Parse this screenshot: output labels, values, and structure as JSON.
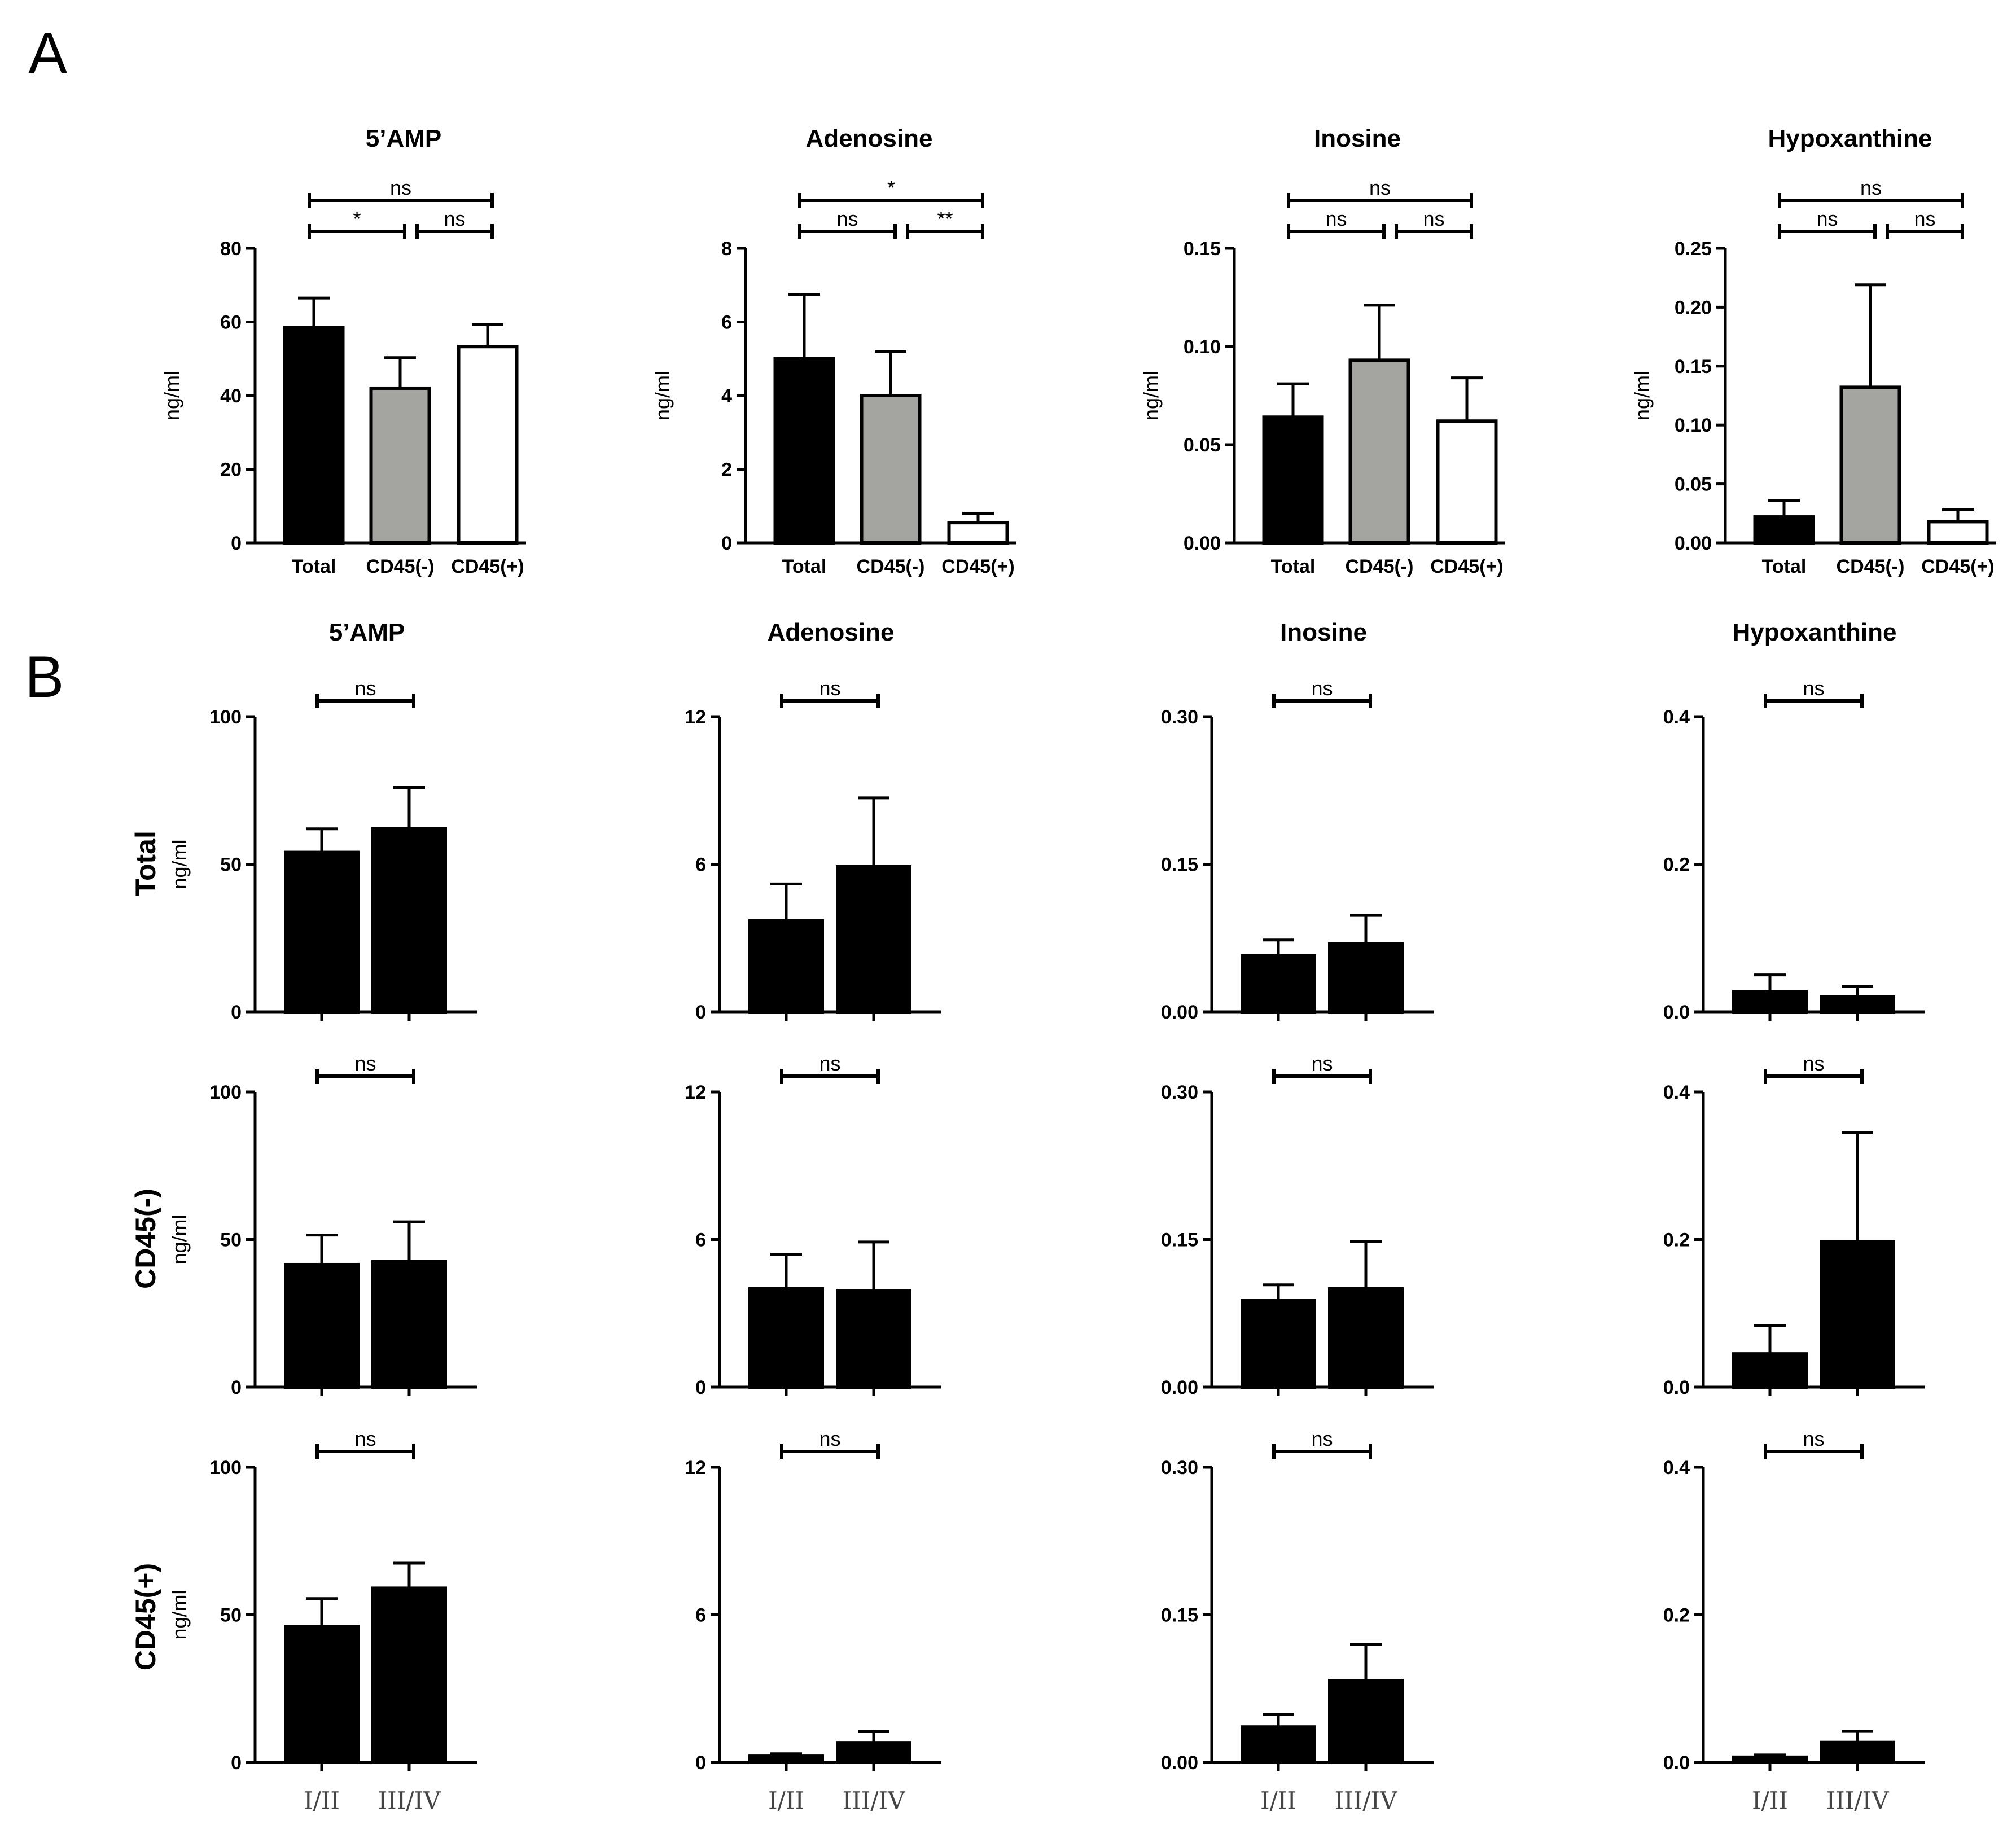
{
  "panel_labels": {
    "A": "A",
    "B": "B"
  },
  "row_labels": [
    "Total",
    "CD45(-)",
    "CD45(+)"
  ],
  "chart_data": {
    "panel_A": [
      {
        "type": "bar",
        "title": "5’AMP",
        "ylabel": "ng/ml",
        "categories": [
          "Total",
          "CD45(-)",
          "CD45(+)"
        ],
        "values": [
          58.5,
          42,
          53.3
        ],
        "errors": [
          8,
          8.3,
          6
        ],
        "colors": [
          "#000000",
          "#a4a4a0",
          "#ffffff"
        ],
        "ylim": [
          0,
          80
        ],
        "yticks": [
          "0",
          "20",
          "40",
          "60",
          "80"
        ],
        "comparisons": [
          {
            "from": 0,
            "to": 2,
            "label": "ns"
          },
          {
            "from": 0,
            "to": 1,
            "label": "*"
          },
          {
            "from": 1,
            "to": 2,
            "label": "ns"
          }
        ]
      },
      {
        "type": "bar",
        "title": "Adenosine",
        "ylabel": "ng/ml",
        "categories": [
          "Total",
          "CD45(-)",
          "CD45(+)"
        ],
        "values": [
          5.0,
          4.0,
          0.55
        ],
        "errors": [
          1.75,
          1.2,
          0.25
        ],
        "colors": [
          "#000000",
          "#a4a4a0",
          "#ffffff"
        ],
        "ylim": [
          0,
          8
        ],
        "yticks": [
          "0",
          "2",
          "4",
          "6",
          "8"
        ],
        "comparisons": [
          {
            "from": 0,
            "to": 2,
            "label": "*"
          },
          {
            "from": 0,
            "to": 1,
            "label": "ns"
          },
          {
            "from": 1,
            "to": 2,
            "label": "**"
          }
        ]
      },
      {
        "type": "bar",
        "title": "Inosine",
        "ylabel": "ng/ml",
        "categories": [
          "Total",
          "CD45(-)",
          "CD45(+)"
        ],
        "values": [
          0.064,
          0.093,
          0.062
        ],
        "errors": [
          0.017,
          0.028,
          0.022
        ],
        "colors": [
          "#000000",
          "#a4a4a0",
          "#ffffff"
        ],
        "ylim": [
          0,
          0.15
        ],
        "yticks": [
          "0.00",
          "0.05",
          "0.10",
          "0.15"
        ],
        "comparisons": [
          {
            "from": 0,
            "to": 2,
            "label": "ns"
          },
          {
            "from": 0,
            "to": 1,
            "label": "ns"
          },
          {
            "from": 1,
            "to": 2,
            "label": "ns"
          }
        ]
      },
      {
        "type": "bar",
        "title": "Hypoxanthine",
        "ylabel": "ng/ml",
        "categories": [
          "Total",
          "CD45(-)",
          "CD45(+)"
        ],
        "values": [
          0.022,
          0.132,
          0.018
        ],
        "errors": [
          0.014,
          0.087,
          0.01
        ],
        "colors": [
          "#000000",
          "#a4a4a0",
          "#ffffff"
        ],
        "ylim": [
          0,
          0.25
        ],
        "yticks": [
          "0.00",
          "0.05",
          "0.10",
          "0.15",
          "0.20",
          "0.25"
        ],
        "comparisons": [
          {
            "from": 0,
            "to": 2,
            "label": "ns"
          },
          {
            "from": 0,
            "to": 1,
            "label": "ns"
          },
          {
            "from": 1,
            "to": 2,
            "label": "ns"
          }
        ]
      }
    ],
    "panel_B": {
      "titles": [
        "5’AMP",
        "Adenosine",
        "Inosine",
        "Hypoxanthine"
      ],
      "categories": [
        "I/II",
        "III/IV"
      ],
      "ylabel": "ng/ml",
      "ylims": [
        [
          0,
          100
        ],
        [
          0,
          12
        ],
        [
          0,
          0.3
        ],
        [
          0,
          0.4
        ]
      ],
      "yticks": [
        [
          "0",
          "50",
          "100"
        ],
        [
          "0",
          "6",
          "12"
        ],
        [
          "0.00",
          "0.15",
          "0.30"
        ],
        [
          "0.0",
          "0.2",
          "0.4"
        ]
      ],
      "comparison_label": "ns",
      "rows": [
        {
          "name": "Total",
          "values": [
            [
              54,
              62
            ],
            [
              3.7,
              5.9
            ],
            [
              0.057,
              0.069
            ],
            [
              0.027,
              0.02
            ]
          ],
          "errors": [
            [
              8,
              14
            ],
            [
              1.5,
              2.8
            ],
            [
              0.016,
              0.029
            ],
            [
              0.023,
              0.014
            ]
          ]
        },
        {
          "name": "CD45(-)",
          "values": [
            [
              41.5,
              42.5
            ],
            [
              4.0,
              3.9
            ],
            [
              0.088,
              0.1
            ],
            [
              0.045,
              0.197
            ]
          ],
          "errors": [
            [
              10,
              13.5
            ],
            [
              1.4,
              2.0
            ],
            [
              0.016,
              0.048
            ],
            [
              0.038,
              0.148
            ]
          ]
        },
        {
          "name": "CD45(+)",
          "values": [
            [
              46,
              59
            ],
            [
              0.25,
              0.8
            ],
            [
              0.036,
              0.083
            ],
            [
              0.007,
              0.027
            ]
          ],
          "errors": [
            [
              9.5,
              8.5
            ],
            [
              0.1,
              0.45
            ],
            [
              0.013,
              0.037
            ],
            [
              0.003,
              0.015
            ]
          ]
        }
      ]
    }
  }
}
